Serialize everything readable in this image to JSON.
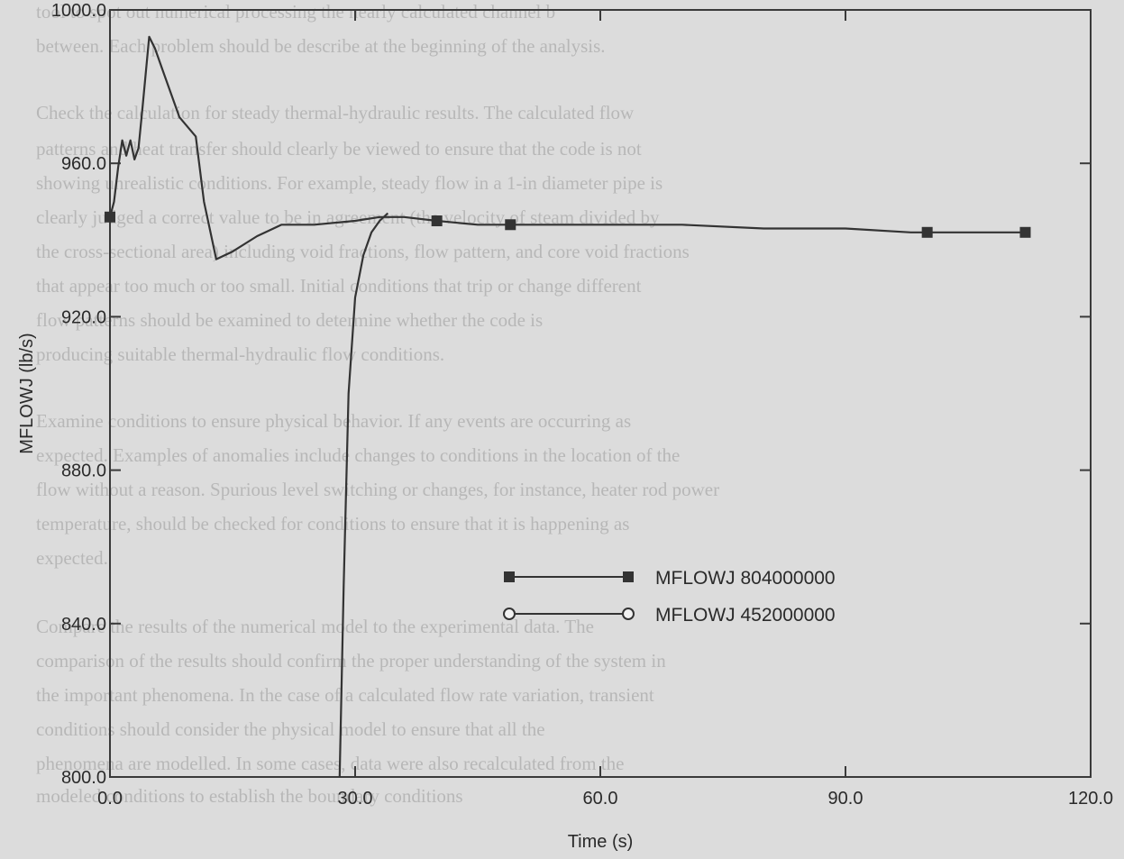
{
  "chart_data": {
    "type": "line",
    "xlabel": "Time (s)",
    "ylabel": "MFLOWJ (lb/s)",
    "xlim": [
      0,
      120
    ],
    "ylim": [
      800,
      1000
    ],
    "x_ticks": [
      "0.0",
      "30.0",
      "60.0",
      "90.0",
      "120.0"
    ],
    "y_ticks": [
      "800.0",
      "840.0",
      "880.0",
      "920.0",
      "960.0",
      "1000.0"
    ],
    "grid": false,
    "legend_position": "right-center",
    "series": [
      {
        "name": "MFLOWJ 804000000",
        "marker": "filled-square",
        "color": "#333333",
        "x": [
          0.0,
          0.5,
          1.0,
          1.5,
          2.0,
          2.5,
          3.0,
          3.5,
          4.0,
          4.8,
          5.5,
          6.5,
          8.5,
          10.5,
          11.5,
          13.0,
          15.0,
          18.0,
          21.0,
          25.0,
          30.0,
          33.0,
          36.0,
          40.0,
          45.0,
          49.0,
          55.0,
          60.0,
          70.0,
          80.0,
          90.0,
          98.0,
          100.0,
          110.0,
          112.0
        ],
        "y": [
          946.0,
          950.0,
          959.0,
          966.0,
          962.0,
          966.0,
          961.0,
          964.0,
          975.0,
          993.0,
          990.0,
          984.0,
          972.0,
          967.0,
          950.0,
          935.0,
          937.0,
          941.0,
          944.0,
          944.0,
          945.0,
          946.0,
          946.0,
          945.0,
          944.0,
          944.0,
          944.0,
          944.0,
          944.0,
          943.0,
          943.0,
          942.0,
          942.0,
          942.0,
          942.0
        ]
      },
      {
        "name": "MFLOWJ 452000000",
        "marker": "open-circle",
        "color": "#333333",
        "x": [
          28.1,
          28.6,
          29.2,
          30.0,
          31.0,
          32.0,
          33.0,
          34.0
        ],
        "y": [
          800.0,
          850.0,
          900.0,
          925.0,
          936.0,
          942.0,
          945.0,
          947.0
        ]
      }
    ]
  },
  "background_text": [
    "tool to spot out numerical processing the nearly calculated channel b",
    "between. Each problem should be describe at the beginning of the analysis.",
    "Check the calculation for steady thermal-hydraulic results. The calculated flow",
    "patterns and heat transfer should clearly be viewed to ensure that the code is not",
    "showing unrealistic conditions. For example, steady flow in a 1-in diameter pipe is",
    "clearly judged a correct value to be in agreement (the velocity of steam divided by",
    "the cross-sectional area) including void fractions, flow pattern, and core void fractions",
    "that appear too much or too small. Initial conditions that trip or change different",
    "flow patterns should be examined to determine whether the code is",
    "producing suitable thermal-hydraulic flow conditions.",
    "Examine conditions to ensure physical behavior. If any events are occurring as",
    "expected. Examples of anomalies include changes to conditions in the location of the",
    "flow without a reason. Spurious level switching or changes, for instance, heater rod power",
    "temperature, should be checked for conditions to ensure that it is happening as",
    "expected.",
    "Compare the results of the numerical model to the experimental data. The",
    "comparison of the results should confirm the proper understanding of the system in",
    "the important phenomena. In the case of a calculated flow rate variation, transient",
    "conditions should consider the physical model to ensure that all the",
    "phenomena are modelled. In some cases, data were also recalculated from the",
    "modeled conditions to establish the boundary conditions"
  ]
}
